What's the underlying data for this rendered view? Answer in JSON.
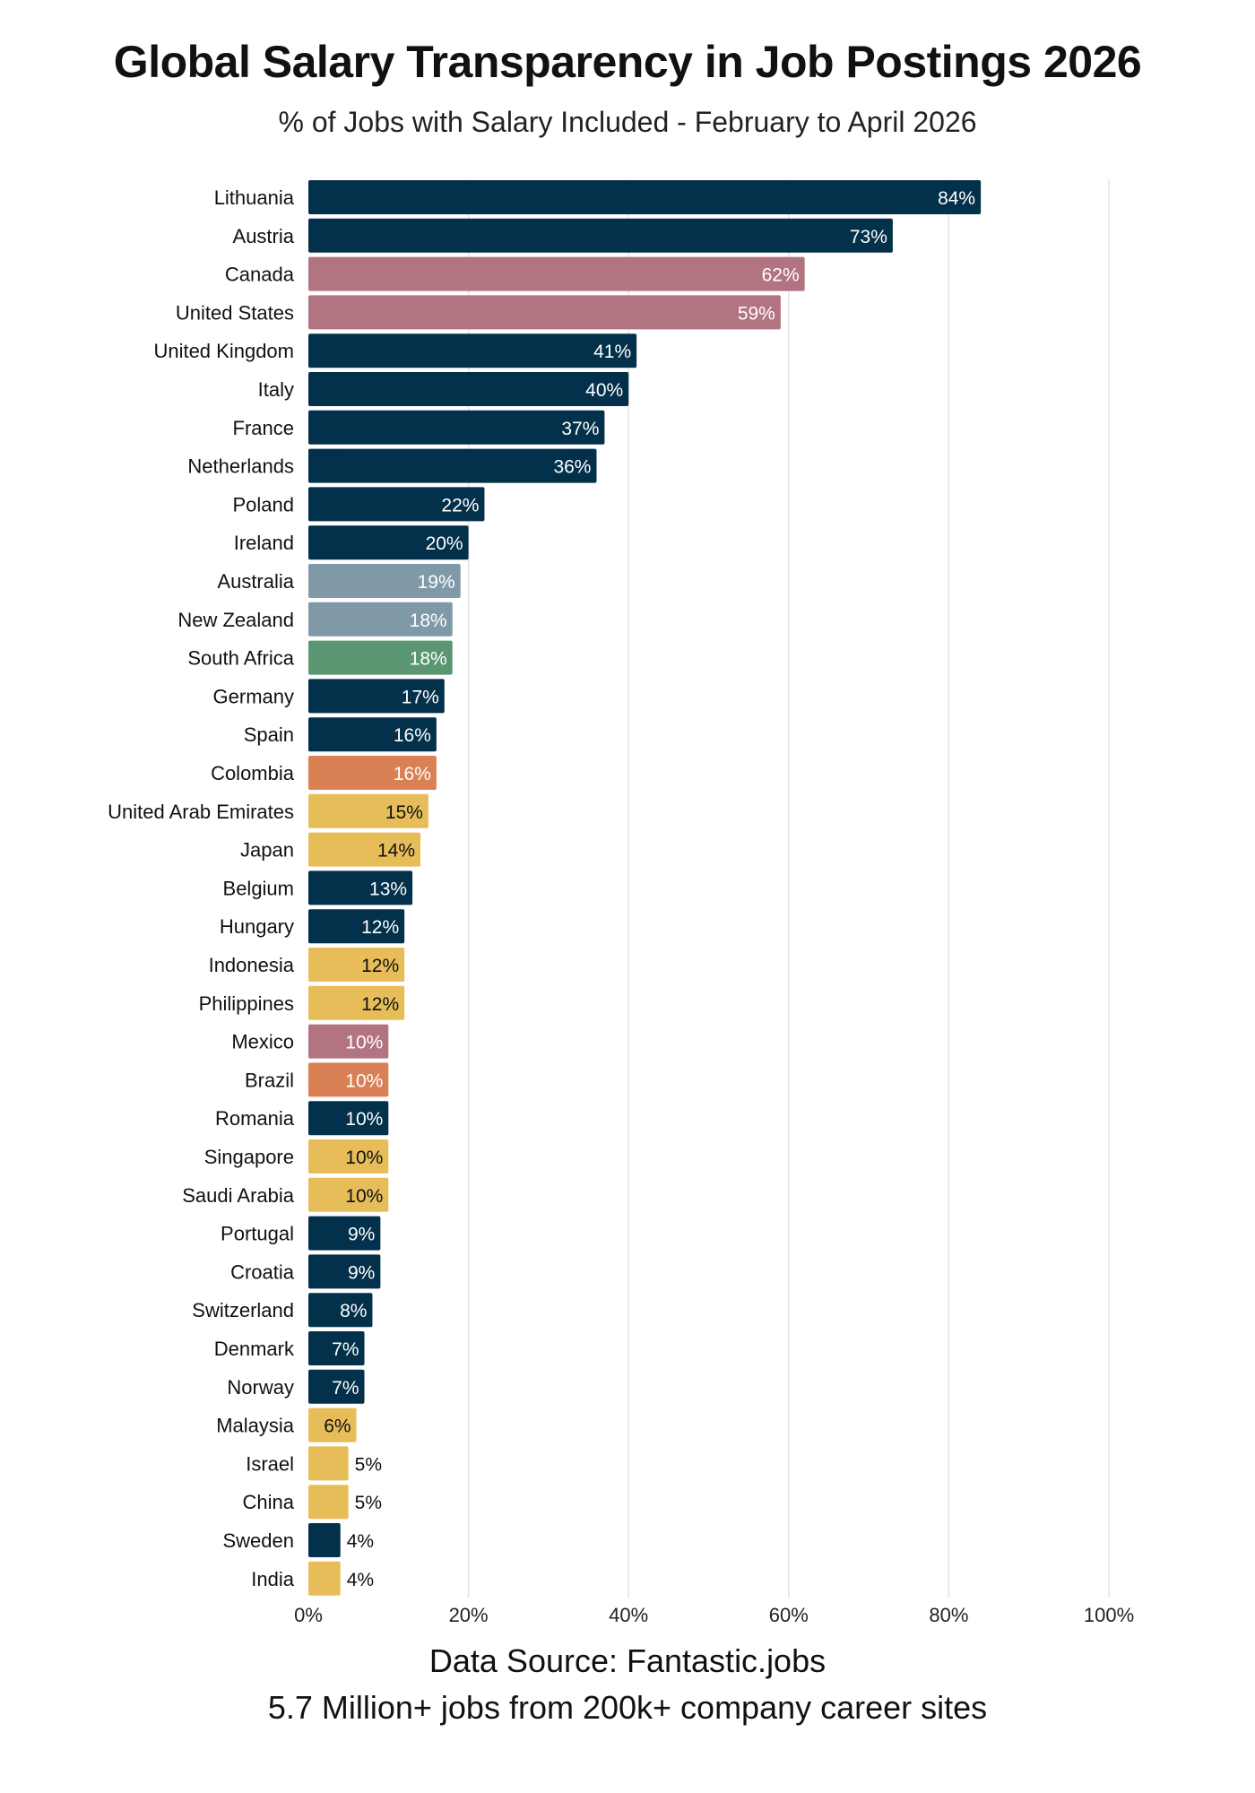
{
  "chart_data": {
    "type": "bar",
    "orientation": "horizontal",
    "title": "Global Salary Transparency in Job Postings 2026",
    "subtitle": "% of Jobs with Salary Included - February to April 2026",
    "categories": [
      "Lithuania",
      "Austria",
      "Canada",
      "United States",
      "United Kingdom",
      "Italy",
      "France",
      "Netherlands",
      "Poland",
      "Ireland",
      "Australia",
      "New Zealand",
      "South Africa",
      "Germany",
      "Spain",
      "Colombia",
      "United Arab Emirates",
      "Japan",
      "Belgium",
      "Hungary",
      "Indonesia",
      "Philippines",
      "Mexico",
      "Brazil",
      "Romania",
      "Singapore",
      "Saudi Arabia",
      "Portugal",
      "Croatia",
      "Switzerland",
      "Denmark",
      "Norway",
      "Malaysia",
      "Israel",
      "China",
      "Sweden",
      "India"
    ],
    "values": [
      84,
      73,
      62,
      59,
      41,
      40,
      37,
      36,
      22,
      20,
      19,
      18,
      18,
      17,
      16,
      16,
      15,
      14,
      13,
      12,
      12,
      12,
      10,
      10,
      10,
      10,
      10,
      9,
      9,
      8,
      7,
      7,
      6,
      5,
      5,
      4,
      4
    ],
    "data_labels": [
      "84%",
      "73%",
      "62%",
      "59%",
      "41%",
      "40%",
      "37%",
      "36%",
      "22%",
      "20%",
      "19%",
      "18%",
      "18%",
      "17%",
      "16%",
      "16%",
      "15%",
      "14%",
      "13%",
      "12%",
      "12%",
      "12%",
      "10%",
      "10%",
      "10%",
      "10%",
      "10%",
      "9%",
      "9%",
      "8%",
      "7%",
      "7%",
      "6%",
      "5%",
      "5%",
      "4%",
      "4%"
    ],
    "bar_colors": [
      "#03304a",
      "#03304a",
      "#b37482",
      "#b37482",
      "#03304a",
      "#03304a",
      "#03304a",
      "#03304a",
      "#03304a",
      "#03304a",
      "#7f99a7",
      "#7f99a7",
      "#5b9673",
      "#03304a",
      "#03304a",
      "#d98055",
      "#e7bd59",
      "#e7bd59",
      "#03304a",
      "#03304a",
      "#e7bd59",
      "#e7bd59",
      "#b37482",
      "#d98055",
      "#03304a",
      "#e7bd59",
      "#e7bd59",
      "#03304a",
      "#03304a",
      "#03304a",
      "#03304a",
      "#03304a",
      "#e7bd59",
      "#e7bd59",
      "#e7bd59",
      "#03304a",
      "#e7bd59"
    ],
    "xlim": [
      0,
      100
    ],
    "x_ticks": [
      "0%",
      "20%",
      "40%",
      "60%",
      "80%",
      "100%"
    ],
    "x_tick_values": [
      0,
      20,
      40,
      60,
      80,
      100
    ],
    "grid": "vertical",
    "xlabel": "",
    "ylabel": ""
  },
  "footer": {
    "source": "Data Source: Fantastic.jobs",
    "note": "5.7 Million+ jobs from 200k+ company career sites"
  }
}
